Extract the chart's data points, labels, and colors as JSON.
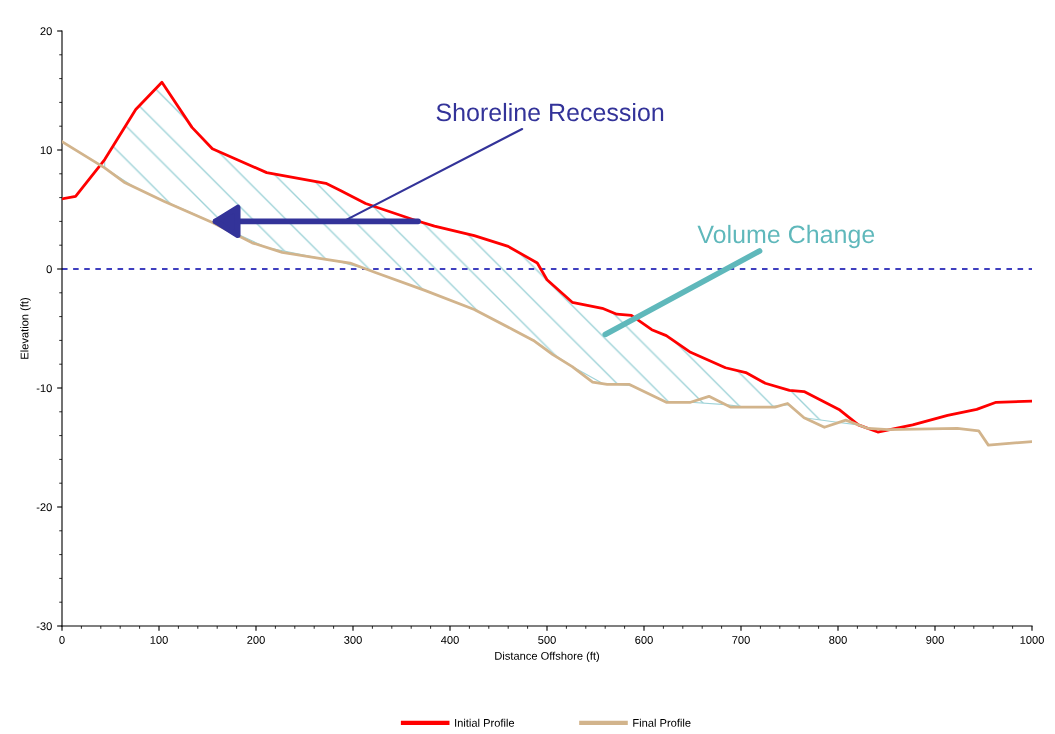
{
  "chart_data": {
    "type": "line",
    "xlabel": "Distance Offshore (ft)",
    "ylabel": "Elevation (ft)",
    "xlim": [
      0,
      1000
    ],
    "xticks": [
      0,
      100,
      200,
      300,
      400,
      500,
      600,
      700,
      800,
      900,
      1000
    ],
    "ylim": [
      -30,
      20
    ],
    "yticks": [
      -30,
      -20,
      -10,
      0,
      10,
      20
    ],
    "legend": "bottom",
    "grid": false,
    "ref_lines": [
      {
        "axis": "y",
        "value": 0,
        "color": "#0000aa",
        "line_style": "dashed"
      }
    ],
    "annotations": [
      "Shoreline Recession",
      "Volume Change"
    ],
    "series": [
      {
        "name": "Initial Profile",
        "color": "#ff0000",
        "x": [
          0,
          14,
          44,
          76,
          103,
          134,
          155,
          211,
          272,
          287,
          313,
          364,
          384,
          425,
          460,
          490,
          500,
          526,
          557,
          572,
          587,
          608,
          623,
          648,
          684,
          705,
          725,
          750,
          765,
          801,
          821,
          841,
          877,
          913,
          943,
          963,
          1000
        ],
        "values": [
          5.9,
          6.1,
          9.2,
          13.4,
          15.7,
          11.9,
          10.1,
          8.1,
          7.2,
          6.6,
          5.5,
          4.1,
          3.6,
          2.8,
          1.9,
          0.5,
          -0.9,
          -2.8,
          -3.3,
          -3.8,
          -3.9,
          -5.1,
          -5.6,
          -7.0,
          -8.3,
          -8.7,
          -9.6,
          -10.2,
          -10.3,
          -11.8,
          -13.1,
          -13.7,
          -13.1,
          -12.3,
          -11.8,
          -11.2,
          -11.1
        ],
        "upper": [
          null,
          null,
          9.2,
          13.4,
          15.7,
          11.9,
          10.1,
          8.1,
          7.2,
          6.6,
          5.5,
          4.1,
          3.6,
          2.8,
          1.9,
          0.5,
          -0.9,
          -2.8,
          -3.3,
          -3.8,
          -3.9,
          -5.1,
          -5.6,
          -7.0,
          -8.3,
          -8.7,
          -9.6,
          -10.2,
          -10.3,
          -11.8,
          -13.1,
          null,
          null,
          null,
          null,
          null,
          null
        ],
        "lower": [
          null,
          null,
          8.5,
          6.8,
          5.8,
          4.7,
          3.9,
          1.8,
          0.8,
          0.6,
          0.0,
          -1.5,
          -2.1,
          -3.4,
          -4.9,
          -6.2,
          -6.8,
          -8.2,
          -9.6,
          -9.7,
          -9.8,
          -10.6,
          -11.2,
          -11.2,
          -11.4,
          -11.6,
          -11.6,
          -11.4,
          -12.5,
          -12.9,
          -13.1,
          null,
          null,
          null,
          null,
          null,
          null
        ]
      },
      {
        "name": "Final Profile",
        "color": "#d2b48c",
        "x": [
          0,
          44,
          64,
          105,
          155,
          196,
          227,
          272,
          297,
          323,
          374,
          425,
          465,
          486,
          506,
          526,
          547,
          562,
          585,
          623,
          648,
          667,
          689,
          735,
          748,
          765,
          786,
          808,
          831,
          852,
          923,
          945,
          955,
          1000
        ],
        "values": [
          10.7,
          8.5,
          7.3,
          5.7,
          3.9,
          2.2,
          1.4,
          0.8,
          0.5,
          -0.3,
          -1.8,
          -3.4,
          -5.1,
          -6.0,
          -7.2,
          -8.2,
          -9.5,
          -9.7,
          -9.7,
          -11.2,
          -11.2,
          -10.7,
          -11.6,
          -11.6,
          -11.3,
          -12.5,
          -13.3,
          -12.7,
          -13.4,
          -13.5,
          -13.4,
          -13.6,
          -14.8,
          -14.5
        ]
      }
    ]
  }
}
